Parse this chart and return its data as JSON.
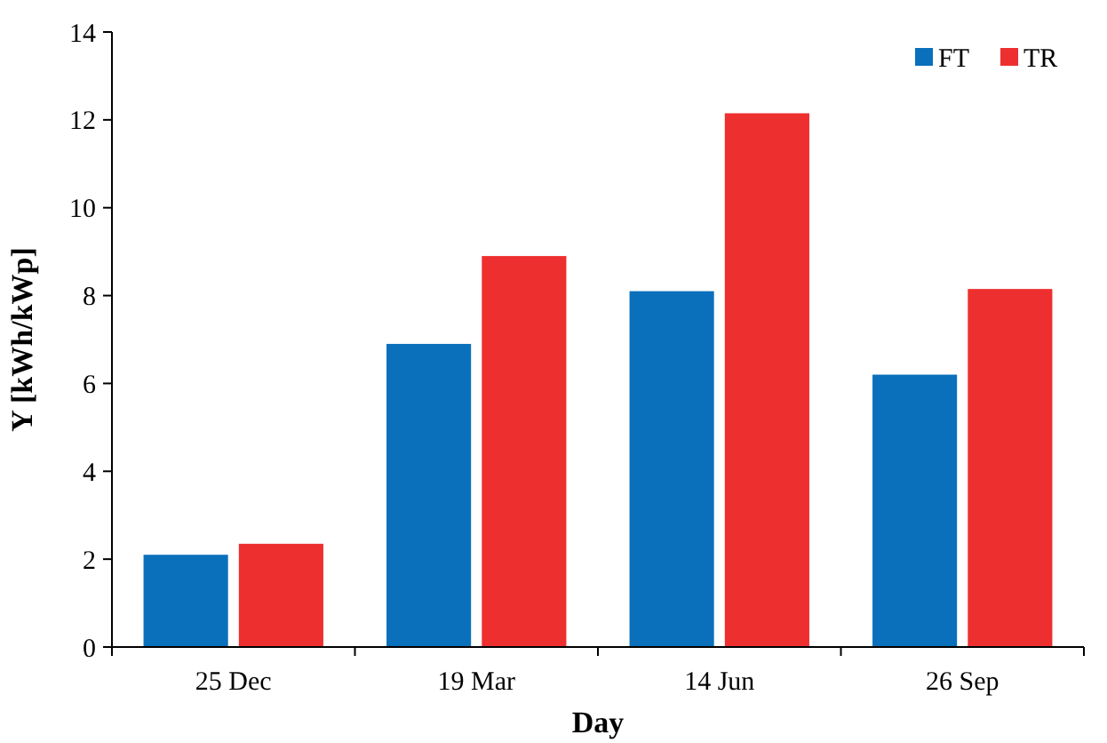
{
  "chart_data": {
    "type": "bar",
    "xlabel": "Day",
    "ylabel": "Y [kWh/kWp]",
    "categories": [
      "25 Dec",
      "19 Mar",
      "14 Jun",
      "26 Sep"
    ],
    "series": [
      {
        "name": "FT",
        "color": "#0a70bb",
        "values": [
          2.1,
          6.9,
          8.1,
          6.2
        ]
      },
      {
        "name": "TR",
        "color": "#ee2f2f",
        "values": [
          2.35,
          8.9,
          12.15,
          8.15
        ]
      }
    ],
    "ylim": [
      0,
      14
    ],
    "yticks": [
      0,
      2,
      4,
      6,
      8,
      10,
      12,
      14
    ],
    "grid": false,
    "legend": "top right"
  }
}
